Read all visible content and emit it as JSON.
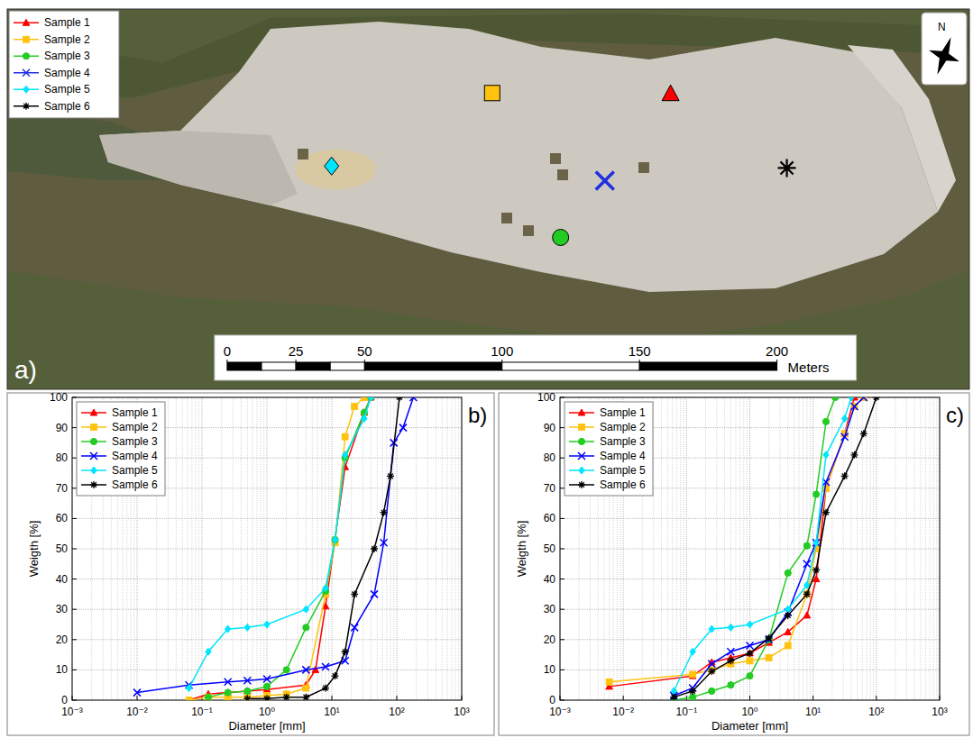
{
  "chart_data": [
    {
      "type": "scatter",
      "panel_label": "a)",
      "north_label": "N",
      "xlabel": "Meters",
      "xlim": [
        -80,
        270
      ],
      "ylim": [
        0,
        138
      ],
      "xticks": [
        0,
        25,
        50,
        100,
        150,
        200
      ],
      "tick_labels": "x",
      "legend": "upper left",
      "series": [
        {
          "name": "Sample 1",
          "color": "#ff0000",
          "marker": "triangle",
          "x": [
            161.3
          ],
          "values": [
            107.2
          ]
        },
        {
          "name": "Sample 2",
          "color": "#ffc20e",
          "marker": "square",
          "x": [
            96.4
          ],
          "values": [
            107.5
          ]
        },
        {
          "name": "Sample 3",
          "color": "#22cc22",
          "marker": "circle",
          "x": [
            121.3
          ],
          "values": [
            55.1
          ]
        },
        {
          "name": "Sample 4",
          "color": "#1f2fe0",
          "marker": "x",
          "x": [
            137.4
          ],
          "values": [
            75.7
          ]
        },
        {
          "name": "Sample 5",
          "color": "#00e5ff",
          "marker": "diamond",
          "x": [
            38.0
          ],
          "values": [
            81.0
          ]
        },
        {
          "name": "Sample 6",
          "color": "#000000",
          "marker": "star",
          "x": [
            203.6
          ],
          "values": [
            80.3
          ]
        }
      ]
    },
    {
      "type": "line",
      "panel_label": "b)",
      "xlabel": "Diameter [mm]",
      "ylabel": "Weigth [%]",
      "log": "x",
      "grid": true,
      "legend": "upper left",
      "xlim": [
        0.001,
        1000
      ],
      "ylim": [
        0,
        100
      ],
      "xticks": [
        {
          "value": 0.001,
          "label": "10⁻³"
        },
        {
          "value": 0.01,
          "label": "10⁻²"
        },
        {
          "value": 0.1,
          "label": "10⁻¹"
        },
        {
          "value": 1,
          "label": "10⁰"
        },
        {
          "value": 10,
          "label": "10¹"
        },
        {
          "value": 100,
          "label": "10²"
        },
        {
          "value": 1000,
          "label": "10³"
        }
      ],
      "yticks": [
        0,
        10,
        20,
        30,
        40,
        50,
        60,
        70,
        80,
        90,
        100
      ],
      "series": [
        {
          "name": "Sample 1",
          "color": "#ff0000",
          "marker": "triangle",
          "line_style": "solid",
          "x": [
            0.063,
            0.125,
            0.25,
            0.5,
            1,
            4,
            5.6,
            8,
            16,
            31.5,
            40
          ],
          "values": [
            0,
            2,
            2.5,
            3,
            3.5,
            5,
            10,
            31,
            77,
            95,
            100
          ]
        },
        {
          "name": "Sample 2",
          "color": "#ffc20e",
          "marker": "square",
          "line_style": "solid",
          "x": [
            0.063,
            0.125,
            0.25,
            0.5,
            1,
            2,
            4,
            8,
            11.2,
            16,
            22.4,
            31.5
          ],
          "values": [
            0,
            1,
            1,
            1,
            1.5,
            2,
            4,
            35,
            52,
            87,
            97,
            100
          ]
        },
        {
          "name": "Sample 3",
          "color": "#22cc22",
          "marker": "circle",
          "line_style": "solid",
          "x": [
            0.125,
            0.25,
            0.5,
            1,
            2,
            4,
            8,
            11.2,
            16,
            31.5,
            40
          ],
          "values": [
            1,
            2.5,
            3,
            4.5,
            10,
            24,
            36,
            53,
            80,
            95,
            100
          ]
        },
        {
          "name": "Sample 4",
          "color": "#0000ff",
          "marker": "x",
          "line_style": "solid",
          "x": [
            0.01,
            0.063,
            0.25,
            0.5,
            1,
            4,
            8,
            16,
            22.4,
            45,
            63,
            90,
            125,
            180
          ],
          "values": [
            2.5,
            5,
            6,
            6.5,
            7,
            10,
            11,
            13,
            24,
            35,
            52,
            85,
            90,
            100
          ]
        },
        {
          "name": "Sample 5",
          "color": "#00e5ff",
          "marker": "diamond",
          "line_style": "solid",
          "x": [
            0.063,
            0.125,
            0.25,
            0.5,
            1,
            4,
            8,
            11.2,
            16,
            31.5,
            40
          ],
          "values": [
            4,
            16,
            23.5,
            24,
            25,
            30,
            37,
            53,
            81,
            93,
            100
          ]
        },
        {
          "name": "Sample 6",
          "color": "#000000",
          "marker": "star",
          "line_style": "solid",
          "x": [
            0.5,
            1,
            2,
            4,
            8,
            11.2,
            16,
            22.4,
            45,
            63,
            80,
            110
          ],
          "values": [
            0.5,
            0.5,
            1,
            1,
            4,
            8,
            16,
            35,
            50,
            62,
            74,
            100
          ]
        }
      ]
    },
    {
      "type": "line",
      "panel_label": "c)",
      "xlabel": "Diameter [mm]",
      "ylabel": "Weigth [%]",
      "log": "x",
      "grid": true,
      "legend": "upper left",
      "xlim": [
        0.001,
        1000
      ],
      "ylim": [
        0,
        100
      ],
      "xticks": [
        {
          "value": 0.001,
          "label": "10⁻³"
        },
        {
          "value": 0.01,
          "label": "10⁻²"
        },
        {
          "value": 0.1,
          "label": "10⁻¹"
        },
        {
          "value": 1,
          "label": "10⁰"
        },
        {
          "value": 10,
          "label": "10¹"
        },
        {
          "value": 100,
          "label": "10²"
        },
        {
          "value": 1000,
          "label": "10³"
        }
      ],
      "yticks": [
        0,
        10,
        20,
        30,
        40,
        50,
        60,
        70,
        80,
        90,
        100
      ],
      "series": [
        {
          "name": "Sample 1",
          "color": "#ff0000",
          "marker": "triangle",
          "line_style": "solid",
          "x": [
            0.006,
            0.125,
            0.25,
            0.5,
            1,
            2,
            4,
            8,
            11.2,
            16,
            31.5,
            45
          ],
          "values": [
            4.5,
            8,
            12.5,
            14,
            15.5,
            19,
            22.5,
            28,
            40,
            70,
            88,
            100
          ]
        },
        {
          "name": "Sample 2",
          "color": "#ffc20e",
          "marker": "square",
          "line_style": "solid",
          "x": [
            0.006,
            0.125,
            0.25,
            0.5,
            1,
            2,
            4,
            8,
            11.2,
            16,
            31.5,
            45,
            63
          ],
          "values": [
            6,
            8.5,
            10,
            12,
            13,
            14,
            18,
            35,
            50,
            70,
            88,
            97,
            100
          ]
        },
        {
          "name": "Sample 3",
          "color": "#22cc22",
          "marker": "circle",
          "line_style": "solid",
          "x": [
            0.063,
            0.125,
            0.25,
            0.5,
            1,
            2,
            4,
            8,
            11.2,
            16,
            22.4
          ],
          "values": [
            0,
            1,
            3,
            5,
            8,
            20,
            42,
            51,
            68,
            92,
            100
          ]
        },
        {
          "name": "Sample 4",
          "color": "#0000ff",
          "marker": "x",
          "line_style": "solid",
          "x": [
            0.063,
            0.125,
            0.25,
            0.5,
            1,
            2,
            4,
            8,
            11.2,
            16,
            31.5,
            45,
            63
          ],
          "values": [
            1.5,
            4,
            12,
            16,
            18,
            20,
            29,
            45,
            52,
            72,
            87,
            97,
            100
          ]
        },
        {
          "name": "Sample 5",
          "color": "#00e5ff",
          "marker": "diamond",
          "line_style": "solid",
          "x": [
            0.063,
            0.125,
            0.25,
            0.5,
            1,
            4,
            8,
            11.2,
            16,
            31.5,
            40
          ],
          "values": [
            3,
            16,
            23.5,
            24,
            25,
            30,
            38,
            52,
            81,
            93,
            100
          ]
        },
        {
          "name": "Sample 6",
          "color": "#000000",
          "marker": "star",
          "line_style": "solid",
          "x": [
            0.063,
            0.125,
            0.25,
            0.5,
            1,
            2,
            4,
            8,
            11.2,
            16,
            31.5,
            45,
            63,
            100
          ],
          "values": [
            1,
            3,
            9.5,
            13,
            15.5,
            20.5,
            28,
            35,
            43,
            62,
            74,
            81,
            88,
            100
          ]
        }
      ]
    }
  ]
}
